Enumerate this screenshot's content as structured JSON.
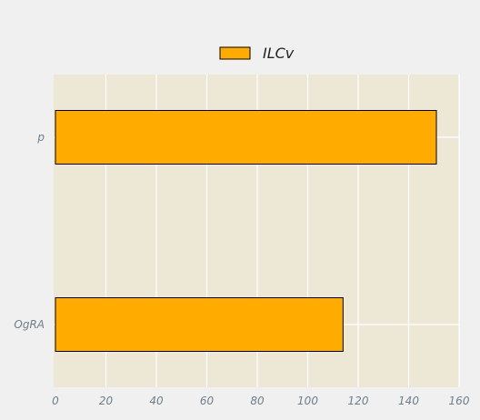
{
  "chart_data": {
    "type": "bar",
    "orientation": "horizontal",
    "title": "",
    "xlabel": "",
    "ylabel": "",
    "categories": [
      "p",
      "OgRA"
    ],
    "series": [
      {
        "name": "ILCv",
        "values": [
          151,
          114
        ],
        "color": "#ffab00"
      }
    ],
    "xlim": [
      0,
      160
    ],
    "xticks": [
      0,
      20,
      40,
      60,
      80,
      100,
      120,
      140,
      160
    ],
    "grid": true,
    "legend_position": "top-center",
    "colors": {
      "plot_background": "#ede7d6",
      "figure_background": "#f0f0f0",
      "grid": "#ffffff",
      "bar_edge": "#000000",
      "tick_text": "#6e7f8a"
    }
  }
}
